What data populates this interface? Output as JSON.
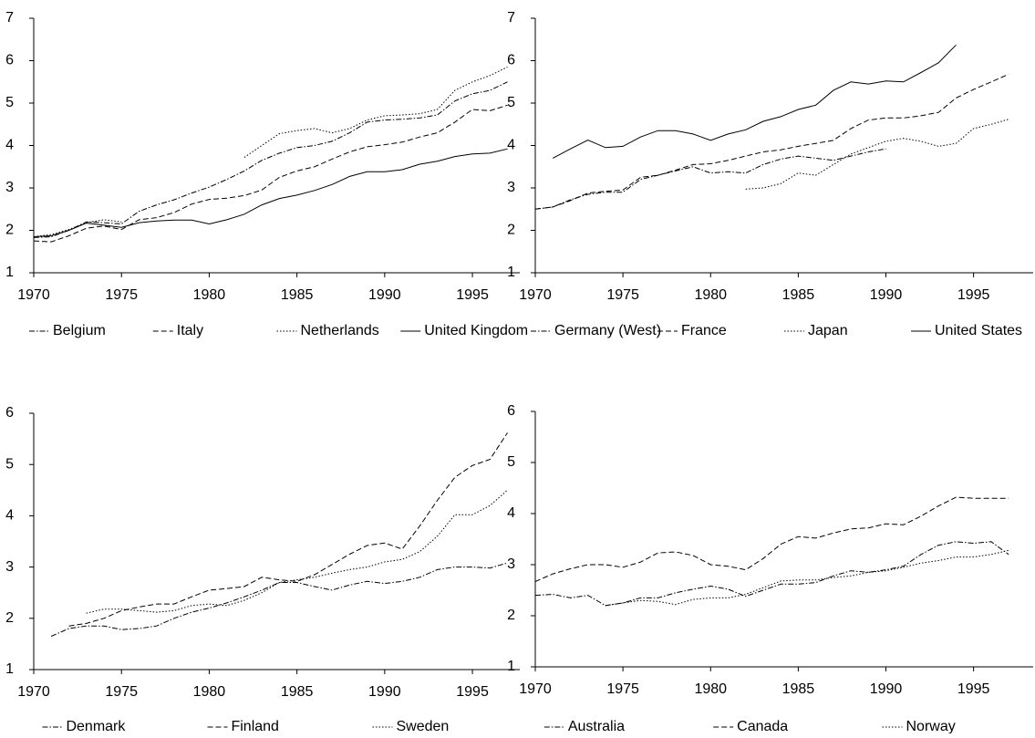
{
  "chart_data": [
    {
      "type": "line",
      "x": [
        1970,
        1971,
        1972,
        1973,
        1974,
        1975,
        1976,
        1977,
        1978,
        1979,
        1980,
        1981,
        1982,
        1983,
        1984,
        1985,
        1986,
        1987,
        1988,
        1989,
        1990,
        1991,
        1992,
        1993,
        1994,
        1995,
        1996,
        1997
      ],
      "xlim": [
        1970,
        1997.7
      ],
      "xticks": [
        1970,
        1975,
        1980,
        1985,
        1990,
        1995
      ],
      "ylim": [
        1,
        7
      ],
      "yticks": [
        1,
        2,
        3,
        4,
        5,
        6,
        7
      ],
      "series": [
        {
          "name": "Belgium",
          "color": "#000000",
          "dash": "dash-dot",
          "values": [
            1.83,
            1.85,
            2.0,
            2.2,
            2.18,
            2.15,
            2.45,
            2.6,
            2.72,
            2.88,
            3.02,
            3.2,
            3.4,
            3.65,
            3.82,
            3.95,
            4.0,
            4.1,
            4.3,
            4.55,
            4.6,
            4.62,
            4.65,
            4.72,
            5.05,
            5.22,
            5.3,
            5.5
          ]
        },
        {
          "name": "Italy",
          "color": "#000000",
          "dash": "dash",
          "values": [
            1.75,
            1.73,
            1.87,
            2.05,
            2.1,
            2.02,
            2.25,
            2.3,
            2.42,
            2.62,
            2.73,
            2.76,
            2.82,
            2.95,
            3.25,
            3.4,
            3.5,
            3.68,
            3.85,
            3.97,
            4.02,
            4.08,
            4.2,
            4.3,
            4.55,
            4.85,
            4.82,
            4.95
          ]
        },
        {
          "name": "Netherlands",
          "color": "#000000",
          "dash": "dot",
          "values": [
            1.85,
            1.9,
            2.02,
            2.18,
            2.25,
            2.2,
            null,
            null,
            null,
            null,
            null,
            null,
            3.72,
            4.0,
            4.28,
            4.35,
            4.4,
            4.3,
            4.4,
            4.6,
            4.7,
            4.72,
            4.75,
            4.85,
            5.3,
            5.5,
            5.65,
            5.85
          ]
        },
        {
          "name": "United Kingdom",
          "color": "#000000",
          "dash": "solid",
          "values": [
            1.85,
            1.87,
            2.0,
            2.17,
            2.12,
            2.07,
            2.18,
            2.22,
            2.24,
            2.24,
            2.15,
            2.25,
            2.38,
            2.6,
            2.75,
            2.83,
            2.94,
            3.08,
            3.27,
            3.38,
            3.38,
            3.43,
            3.56,
            3.63,
            3.74,
            3.8,
            3.82,
            3.92
          ]
        }
      ]
    },
    {
      "type": "line",
      "x": [
        1970,
        1971,
        1972,
        1973,
        1974,
        1975,
        1976,
        1977,
        1978,
        1979,
        1980,
        1981,
        1982,
        1983,
        1984,
        1985,
        1986,
        1987,
        1988,
        1989,
        1990,
        1991,
        1992,
        1993,
        1994,
        1995,
        1996,
        1997
      ],
      "xlim": [
        1970,
        1998.4
      ],
      "xticks": [
        1970,
        1975,
        1980,
        1985,
        1990,
        1995
      ],
      "ylim": [
        1,
        7
      ],
      "yticks": [
        1,
        2,
        3,
        4,
        5,
        6,
        7
      ],
      "series": [
        {
          "name": "Germany (West)",
          "color": "#000000",
          "dash": "dash-dot",
          "values": [
            2.5,
            2.55,
            2.72,
            2.85,
            2.9,
            2.9,
            3.2,
            3.3,
            3.4,
            3.5,
            3.35,
            3.38,
            3.35,
            3.55,
            3.68,
            3.75,
            3.7,
            3.65,
            3.75,
            3.85,
            3.92,
            null,
            null,
            null,
            null,
            null,
            null,
            null
          ]
        },
        {
          "name": "France",
          "color": "#000000",
          "dash": "dash",
          "values": [
            2.5,
            2.55,
            2.7,
            2.88,
            2.92,
            2.95,
            3.25,
            3.3,
            3.42,
            3.55,
            3.57,
            3.65,
            3.75,
            3.85,
            3.9,
            3.98,
            4.05,
            4.12,
            4.4,
            4.6,
            4.65,
            4.65,
            4.7,
            4.78,
            5.12,
            5.32,
            5.5,
            5.68
          ]
        },
        {
          "name": "Japan",
          "color": "#000000",
          "dash": "dot",
          "values": [
            null,
            null,
            null,
            null,
            null,
            null,
            null,
            null,
            null,
            null,
            null,
            null,
            2.97,
            3.0,
            3.1,
            3.35,
            3.3,
            3.55,
            3.8,
            3.95,
            4.1,
            4.17,
            4.1,
            3.98,
            4.05,
            4.4,
            4.5,
            4.62
          ]
        },
        {
          "name": "United States",
          "color": "#000000",
          "dash": "solid",
          "values": [
            null,
            3.7,
            3.92,
            4.13,
            3.95,
            3.98,
            4.2,
            4.35,
            4.35,
            4.27,
            4.12,
            4.27,
            4.37,
            4.57,
            4.68,
            4.85,
            4.95,
            5.3,
            5.5,
            5.45,
            5.52,
            5.5,
            5.72,
            5.95,
            6.37,
            null,
            null,
            null
          ]
        }
      ]
    },
    {
      "type": "line",
      "x": [
        1970,
        1971,
        1972,
        1973,
        1974,
        1975,
        1976,
        1977,
        1978,
        1979,
        1980,
        1981,
        1982,
        1983,
        1984,
        1985,
        1986,
        1987,
        1988,
        1989,
        1990,
        1991,
        1992,
        1993,
        1994,
        1995,
        1996,
        1997
      ],
      "xlim": [
        1970,
        1997.7
      ],
      "xticks": [
        1970,
        1975,
        1980,
        1985,
        1990,
        1995
      ],
      "ylim": [
        1,
        6
      ],
      "yticks": [
        1,
        2,
        3,
        4,
        5,
        6
      ],
      "series": [
        {
          "name": "Denmark",
          "color": "#000000",
          "dash": "dash-dot",
          "values": [
            null,
            1.65,
            1.8,
            1.85,
            1.85,
            1.78,
            1.8,
            1.85,
            2.0,
            2.12,
            2.2,
            2.3,
            2.42,
            2.55,
            2.7,
            2.7,
            2.62,
            2.55,
            2.65,
            2.72,
            2.68,
            2.72,
            2.8,
            2.95,
            3.0,
            3.0,
            2.98,
            3.08
          ]
        },
        {
          "name": "Finland",
          "color": "#000000",
          "dash": "dash",
          "values": [
            null,
            null,
            1.85,
            1.9,
            2.0,
            2.15,
            2.22,
            2.28,
            2.28,
            2.42,
            2.55,
            2.58,
            2.62,
            2.8,
            2.75,
            2.72,
            2.85,
            3.05,
            3.25,
            3.42,
            3.47,
            3.35,
            3.8,
            4.3,
            4.75,
            4.98,
            5.1,
            5.62
          ]
        },
        {
          "name": "Sweden",
          "color": "#000000",
          "dash": "dot",
          "values": [
            null,
            null,
            null,
            2.1,
            2.18,
            2.18,
            2.15,
            2.12,
            2.15,
            2.25,
            2.28,
            2.25,
            2.35,
            2.5,
            2.7,
            2.75,
            2.8,
            2.88,
            2.95,
            3.0,
            3.1,
            3.15,
            3.3,
            3.6,
            4.02,
            4.02,
            4.2,
            4.5
          ]
        }
      ]
    },
    {
      "type": "line",
      "x": [
        1970,
        1971,
        1972,
        1973,
        1974,
        1975,
        1976,
        1977,
        1978,
        1979,
        1980,
        1981,
        1982,
        1983,
        1984,
        1985,
        1986,
        1987,
        1988,
        1989,
        1990,
        1991,
        1992,
        1993,
        1994,
        1995,
        1996,
        1997
      ],
      "xlim": [
        1970,
        1998.4
      ],
      "xticks": [
        1970,
        1975,
        1980,
        1985,
        1990,
        1995
      ],
      "ylim": [
        1,
        6
      ],
      "yticks": [
        1,
        2,
        3,
        4,
        5,
        6
      ],
      "series": [
        {
          "name": "Australia",
          "color": "#000000",
          "dash": "dash-dot",
          "values": [
            2.4,
            2.42,
            2.35,
            2.4,
            2.2,
            2.25,
            2.35,
            2.35,
            2.45,
            2.52,
            2.58,
            2.52,
            2.38,
            2.5,
            2.62,
            2.62,
            2.65,
            2.78,
            2.88,
            2.85,
            2.9,
            2.97,
            3.2,
            3.38,
            3.45,
            3.42,
            3.45,
            3.2
          ]
        },
        {
          "name": "Canada",
          "color": "#000000",
          "dash": "dash",
          "values": [
            2.67,
            2.82,
            2.92,
            3.0,
            3.0,
            2.95,
            3.05,
            3.23,
            3.25,
            3.18,
            3.0,
            2.97,
            2.9,
            3.12,
            3.4,
            3.55,
            3.52,
            3.62,
            3.7,
            3.72,
            3.8,
            3.78,
            3.95,
            4.15,
            4.32,
            4.3,
            4.3,
            4.3
          ]
        },
        {
          "name": "Norway",
          "color": "#000000",
          "dash": "dot",
          "values": [
            null,
            null,
            null,
            null,
            2.2,
            2.25,
            2.3,
            2.28,
            2.22,
            2.32,
            2.35,
            2.35,
            2.42,
            2.55,
            2.68,
            2.7,
            2.7,
            2.75,
            2.78,
            2.85,
            2.88,
            2.95,
            3.03,
            3.08,
            3.15,
            3.15,
            3.2,
            3.28
          ]
        }
      ]
    }
  ]
}
